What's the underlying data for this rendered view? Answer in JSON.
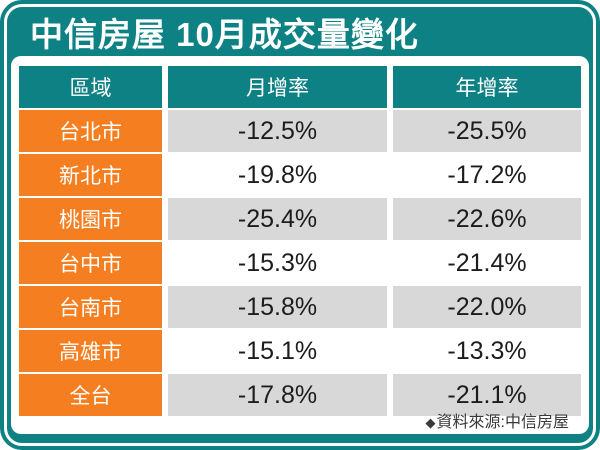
{
  "title": "中信房屋 10月成交量變化",
  "table": {
    "headers": [
      "區域",
      "月增率",
      "年增率"
    ],
    "rows": [
      {
        "region": "台北市",
        "mom": "-12.5%",
        "yoy": "-25.5%"
      },
      {
        "region": "新北市",
        "mom": "-19.8%",
        "yoy": "-17.2%"
      },
      {
        "region": "桃園市",
        "mom": "-25.4%",
        "yoy": "-22.6%"
      },
      {
        "region": "台中市",
        "mom": "-15.3%",
        "yoy": "-21.4%"
      },
      {
        "region": "台南市",
        "mom": "-15.8%",
        "yoy": "-22.0%"
      },
      {
        "region": "高雄市",
        "mom": "-15.1%",
        "yoy": "-13.3%"
      },
      {
        "region": "全台",
        "mom": "-17.8%",
        "yoy": "-21.1%"
      }
    ]
  },
  "footer": {
    "marker": "◆",
    "source": "資料來源:中信房屋"
  },
  "colors": {
    "teal": "#0e8184",
    "orange": "#f57f20",
    "row_alt_gray": "#d8d8d8",
    "value_text": "#1c1c1c",
    "header_text": "#ffffff"
  },
  "chart_data": {
    "type": "table",
    "title": "中信房屋 10月成交量變化",
    "columns": [
      "區域",
      "月增率",
      "年增率"
    ],
    "units": "%",
    "rows": [
      [
        "台北市",
        -12.5,
        -25.5
      ],
      [
        "新北市",
        -19.8,
        -17.2
      ],
      [
        "桃園市",
        -25.4,
        -22.6
      ],
      [
        "台中市",
        -15.3,
        -21.4
      ],
      [
        "台南市",
        -15.8,
        -22.0
      ],
      [
        "高雄市",
        -15.1,
        -13.3
      ],
      [
        "全台",
        -17.8,
        -21.1
      ]
    ],
    "source": "資料來源:中信房屋"
  }
}
